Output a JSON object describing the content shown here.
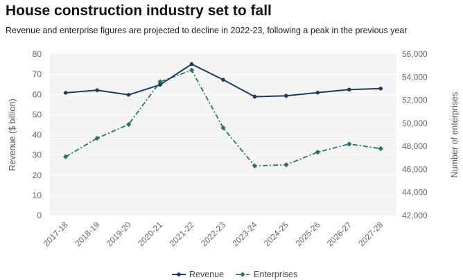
{
  "header": {
    "title": "House construction industry set to fall",
    "subtitle": "Revenue and enterprise figures are projected to decline in 2022-23, following a peak in the previous year"
  },
  "colors": {
    "revenue": "#1b3b63",
    "enterprises": "#23756b",
    "plot_bg": "#f4f4f4",
    "grid": "#ffffff"
  },
  "chart_data": {
    "type": "line",
    "categories": [
      "2017-18",
      "2018-19",
      "2019-20",
      "2020-21",
      "2021-22",
      "2022-23",
      "2023-24",
      "2024-25",
      "2025-26",
      "2026-27",
      "2027-28"
    ],
    "series": [
      {
        "name": "Revenue",
        "axis": "left",
        "values": [
          60.8,
          62.1,
          59.8,
          64.8,
          75.0,
          67.3,
          58.9,
          59.3,
          60.9,
          62.4,
          62.9
        ]
      },
      {
        "name": "Enterprises",
        "axis": "right",
        "values": [
          47100,
          48700,
          49900,
          53600,
          54600,
          49600,
          46300,
          46400,
          47500,
          48200,
          47800
        ]
      }
    ],
    "ylabel": "Revenue ($ billion)",
    "y2label": "Number of enterprises",
    "ylim": [
      0,
      80
    ],
    "y2lim": [
      42000,
      56000
    ],
    "yticks": [
      "0",
      "10",
      "20",
      "30",
      "40",
      "50",
      "60",
      "70",
      "80"
    ],
    "y2ticks": [
      "42,000",
      "44,000",
      "46,000",
      "48,000",
      "50,000",
      "52,000",
      "54,000",
      "56,000"
    ],
    "legend": [
      "Revenue",
      "Enterprises"
    ],
    "legend_position": "bottom"
  }
}
